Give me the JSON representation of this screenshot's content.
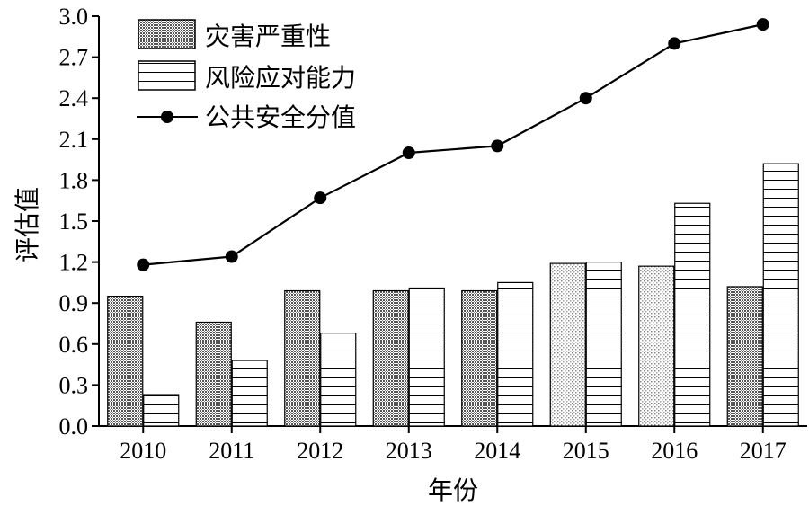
{
  "chart_data": {
    "type": "bar",
    "categories": [
      "2010",
      "2011",
      "2012",
      "2013",
      "2014",
      "2015",
      "2016",
      "2017"
    ],
    "series": [
      {
        "name": "灾害严重性",
        "kind": "bar",
        "pattern": "dense-dots",
        "values": [
          0.95,
          0.76,
          0.99,
          0.99,
          0.99,
          1.19,
          1.17,
          1.02
        ]
      },
      {
        "name": "风险应对能力",
        "kind": "bar",
        "pattern": "horizontal-lines",
        "values": [
          0.23,
          0.48,
          0.68,
          1.01,
          1.05,
          1.2,
          1.63,
          1.92
        ]
      },
      {
        "name": "公共安全分值",
        "kind": "line",
        "marker": "filled-circle",
        "values": [
          1.18,
          1.24,
          1.67,
          2.0,
          2.05,
          2.4,
          2.8,
          2.94
        ]
      }
    ],
    "yticks": [
      "0.0",
      "0.3",
      "0.6",
      "0.9",
      "1.2",
      "1.5",
      "1.8",
      "2.1",
      "2.4",
      "2.7",
      "3.0"
    ],
    "ylim": [
      0,
      3.0
    ],
    "xlabel": "年份",
    "ylabel": "评估值",
    "legend_position": "top-left",
    "grid": false
  }
}
